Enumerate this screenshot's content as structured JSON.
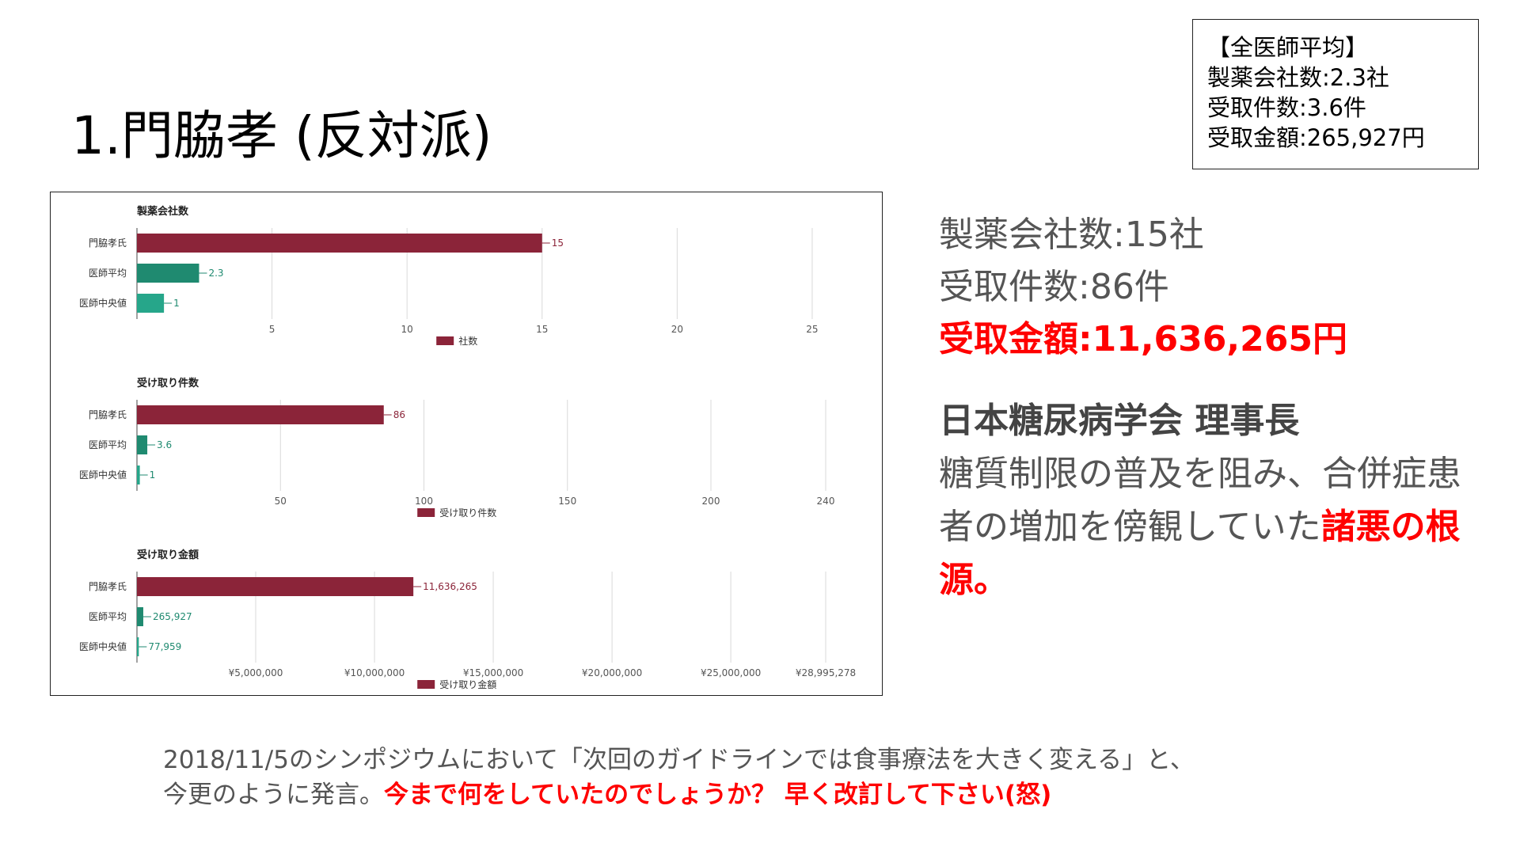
{
  "slide": {
    "title": "1.門脇孝 (反対派)"
  },
  "average_box": {
    "heading": "【全医師平均】",
    "line1": "製薬会社数:2.3社",
    "line2": "受取件数:3.6件",
    "line3": "受取金額:265,927円"
  },
  "stats": {
    "companies": "製薬会社数:15社",
    "cases": "受取件数:86件",
    "amount": "受取金額:11,636,265円"
  },
  "description": {
    "heading": "日本糖尿病学会 理事長",
    "text": "糖質制限の普及を阻み、合併症患者の増加を傍観していた",
    "highlight": "諸悪の根源。"
  },
  "footer": {
    "line1": "2018/11/5のシンポジウムにおいて「次回のガイドラインでは食事療法を大きく変える」と、",
    "line2": "今更のように発言。",
    "highlight": "今まで何をしていたのでしょうか？ 早く改訂して下さい(怒)"
  },
  "colors": {
    "subject_bar": "#8b2439",
    "average_bar": "#1f8a70",
    "median_bar": "#26a68a",
    "red_text": "#ff0000",
    "grid": "#d9d9d9"
  },
  "chart_data": [
    {
      "type": "bar",
      "orientation": "horizontal",
      "title": "製薬会社数",
      "categories": [
        "門脇孝氏",
        "医師平均",
        "医師中央値"
      ],
      "values": [
        15,
        2.3,
        1
      ],
      "value_labels": [
        "15",
        "2.3",
        "1"
      ],
      "xlim": [
        0,
        25.5
      ],
      "ticks": [
        5,
        10,
        15,
        20,
        25
      ],
      "tick_labels": [
        "5",
        "10",
        "15",
        "20",
        "25"
      ],
      "grid": true,
      "legend": {
        "label": "社数",
        "placement": "bottom"
      }
    },
    {
      "type": "bar",
      "orientation": "horizontal",
      "title": "受け取り件数",
      "categories": [
        "門脇孝氏",
        "医師平均",
        "医師中央値"
      ],
      "values": [
        86,
        3.6,
        1
      ],
      "value_labels": [
        "86",
        "3.6",
        "1"
      ],
      "xlim": [
        0,
        240
      ],
      "ticks": [
        50,
        100,
        150,
        200,
        240
      ],
      "tick_labels": [
        "50",
        "100",
        "150",
        "200",
        "240"
      ],
      "grid": true,
      "legend": {
        "label": "受け取り件数",
        "placement": "bottom"
      }
    },
    {
      "type": "bar",
      "orientation": "horizontal",
      "title": "受け取り金額",
      "categories": [
        "門脇孝氏",
        "医師平均",
        "医師中央値"
      ],
      "values": [
        11636265,
        265927,
        77959
      ],
      "value_labels": [
        "11,636,265",
        "265,927",
        "77,959"
      ],
      "xlim": [
        0,
        28995278
      ],
      "ticks": [
        5000000,
        10000000,
        15000000,
        20000000,
        25000000,
        28995278
      ],
      "tick_labels": [
        "¥5,000,000",
        "¥10,000,000",
        "¥15,000,000",
        "¥20,000,000",
        "¥25,000,000",
        "¥28,995,278"
      ],
      "grid": true,
      "legend": {
        "label": "受け取り金額",
        "placement": "bottom"
      }
    }
  ]
}
